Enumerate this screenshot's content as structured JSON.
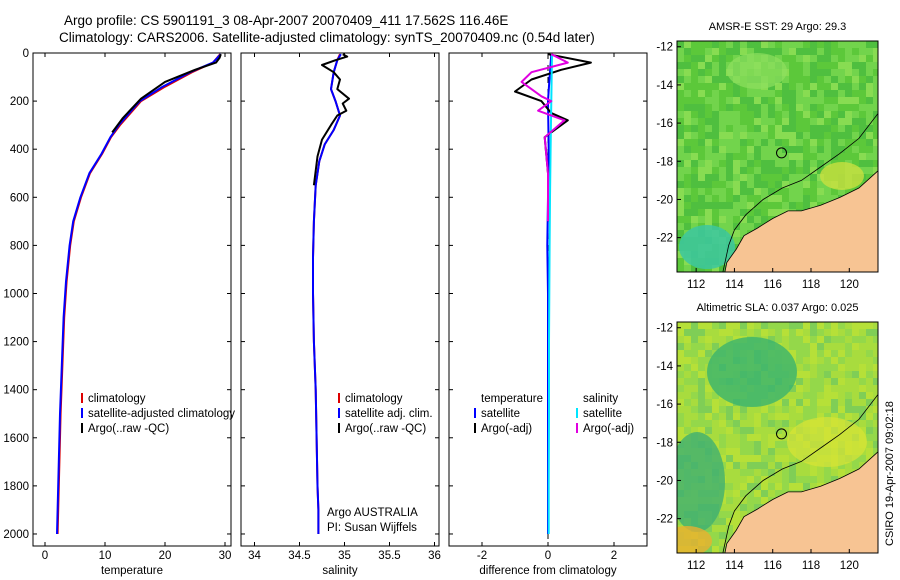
{
  "header": {
    "line1": "Argo profile: CS 5901191_3 08-Apr-2007 20070409_411 17.562S 116.46E",
    "line2": "Climatology: CARS2006. Satellite-adjusted climatology: synTS_20070409.nc (0.54d later)"
  },
  "signature": "CSIRO 19-Apr-2007 09:02:18",
  "colors": {
    "red": "#dd0000",
    "blue": "#0000ff",
    "black": "#000000",
    "cyan": "#00e5ff",
    "magenta": "#e000e0",
    "land": "#f7c493",
    "green": "#6ed24a"
  },
  "chart_data": [
    {
      "id": "temperature",
      "type": "line",
      "xlabel": "temperature",
      "xlim": [
        -2,
        31
      ],
      "ylim": [
        2050,
        0
      ],
      "xticks": [
        "0",
        "10",
        "20",
        "30"
      ],
      "xtick_values": [
        0,
        10,
        20,
        30
      ],
      "yticks": [
        "0",
        "200",
        "400",
        "600",
        "800",
        "1000",
        "1200",
        "1400",
        "1600",
        "1800",
        "2000"
      ],
      "ytick_values": [
        0,
        200,
        400,
        600,
        800,
        1000,
        1200,
        1400,
        1600,
        1800,
        2000
      ],
      "legend": [
        "climatology",
        "satellite-adjusted climatology",
        "Argo(..raw -QC)"
      ],
      "series": [
        {
          "name": "climatology",
          "color": "red",
          "x": [
            29.2,
            28.0,
            24.5,
            20.0,
            16.0,
            12.5,
            11.0,
            9.5,
            7.5,
            6.0,
            4.8,
            4.2,
            3.6,
            3.2,
            2.9,
            2.6,
            2.4,
            2.2,
            2.1
          ],
          "y": [
            5,
            40,
            80,
            140,
            200,
            300,
            350,
            420,
            500,
            600,
            700,
            800,
            950,
            1100,
            1300,
            1500,
            1700,
            1900,
            2000
          ]
        },
        {
          "name": "satellite-adjusted climatology",
          "color": "blue",
          "x": [
            29.3,
            28.0,
            24.2,
            19.6,
            15.8,
            12.3,
            10.9,
            9.4,
            7.4,
            5.9,
            4.7,
            4.1,
            3.5,
            3.1,
            2.8,
            2.5,
            2.3,
            2.1,
            2.0
          ],
          "y": [
            5,
            40,
            80,
            140,
            200,
            300,
            350,
            420,
            500,
            600,
            700,
            800,
            950,
            1100,
            1300,
            1500,
            1700,
            1900,
            2000
          ]
        },
        {
          "name": "Argo(..raw -QC)",
          "color": "black",
          "x": [
            29.3,
            29.1,
            28.5,
            25.0,
            20.0,
            16.0,
            13.0,
            11.2
          ],
          "y": [
            5,
            20,
            40,
            70,
            120,
            190,
            270,
            330
          ]
        }
      ]
    },
    {
      "id": "salinity",
      "type": "line",
      "xlabel": "salinity",
      "xlim": [
        33.85,
        36.05
      ],
      "ylim": [
        2050,
        0
      ],
      "xticks": [
        "34",
        "34.5",
        "35",
        "35.5",
        "36"
      ],
      "xtick_values": [
        34,
        34.5,
        35,
        35.5,
        36
      ],
      "legend": [
        "climatology",
        "satellite adj. clim.",
        "Argo(..raw -QC)"
      ],
      "note1": "Argo AUSTRALIA",
      "note2": "PI: Susan Wijffels",
      "series": [
        {
          "name": "climatology",
          "color": "red",
          "x": [
            34.95,
            34.92,
            34.88,
            34.85,
            34.9,
            34.95,
            34.88,
            34.78,
            34.72,
            34.68,
            34.66,
            34.65,
            34.65,
            34.66,
            34.68,
            34.69,
            34.7,
            34.71,
            34.71
          ],
          "y": [
            5,
            30,
            80,
            150,
            200,
            260,
            320,
            380,
            450,
            550,
            700,
            850,
            1000,
            1200,
            1400,
            1600,
            1800,
            1900,
            2000
          ]
        },
        {
          "name": "satellite adj. clim.",
          "color": "blue",
          "x": [
            34.96,
            34.92,
            34.88,
            34.85,
            34.9,
            34.95,
            34.88,
            34.78,
            34.72,
            34.68,
            34.66,
            34.65,
            34.65,
            34.66,
            34.68,
            34.69,
            34.7,
            34.71,
            34.71
          ],
          "y": [
            5,
            30,
            80,
            150,
            200,
            260,
            320,
            380,
            450,
            550,
            700,
            850,
            1000,
            1200,
            1400,
            1600,
            1800,
            1900,
            2000
          ]
        },
        {
          "name": "Argo(..raw -QC)",
          "color": "black",
          "x": [
            34.98,
            35.03,
            34.9,
            34.75,
            34.88,
            34.95,
            34.92,
            35.05,
            34.98,
            35.02,
            34.92,
            34.85,
            34.75,
            34.7,
            34.66
          ],
          "y": [
            5,
            15,
            30,
            50,
            80,
            110,
            150,
            190,
            210,
            240,
            260,
            300,
            360,
            430,
            550
          ]
        }
      ]
    },
    {
      "id": "difference",
      "type": "line",
      "xlabel": "difference from climatology",
      "xlim": [
        -3,
        3
      ],
      "ylim": [
        2050,
        0
      ],
      "xticks": [
        "-2",
        "0",
        "2"
      ],
      "xtick_values": [
        -2,
        0,
        2
      ],
      "legend_left_title": "temperature",
      "legend_right_title": "salinity",
      "legend_left": [
        "satellite",
        "Argo(-adj)"
      ],
      "legend_right": [
        "satellite",
        "Argo(-adj)"
      ],
      "series": [
        {
          "name": "temperature satellite",
          "color": "blue",
          "x": [
            0.1,
            0.05,
            0.0,
            0.02,
            0.0,
            -0.02,
            0.0,
            0.0,
            0.0,
            0.0,
            0.0
          ],
          "y": [
            5,
            100,
            200,
            400,
            600,
            800,
            1000,
            1200,
            1500,
            1800,
            2000
          ]
        },
        {
          "name": "temperature Argo(-adj)",
          "color": "black",
          "x": [
            0.0,
            1.3,
            0.4,
            -0.5,
            -1.0,
            -0.2,
            0.1,
            0.6,
            -0.1,
            0.0,
            0.0
          ],
          "y": [
            5,
            40,
            70,
            110,
            160,
            200,
            250,
            280,
            350,
            500,
            700
          ]
        },
        {
          "name": "salinity satellite",
          "color": "cyan",
          "x": [
            0.12,
            0.1,
            0.08,
            0.06,
            0.05,
            0.04,
            0.03,
            0.03,
            0.02,
            0.02
          ],
          "y": [
            5,
            200,
            400,
            600,
            800,
            1000,
            1200,
            1500,
            1800,
            2000
          ]
        },
        {
          "name": "salinity Argo(-adj)",
          "color": "magenta",
          "x": [
            0.1,
            0.6,
            -0.5,
            -0.8,
            -0.2,
            0.1,
            -0.3,
            0.5,
            -0.1,
            0.0,
            0.0
          ],
          "y": [
            5,
            40,
            80,
            120,
            180,
            200,
            240,
            280,
            350,
            500,
            700
          ]
        }
      ]
    },
    {
      "id": "sst-map",
      "type": "heatmap",
      "title": "AMSR-E SST: 29 Argo: 29.3",
      "xlim": [
        111,
        121.5
      ],
      "ylim": [
        -23.8,
        -11.7
      ],
      "xticks": [
        "112",
        "114",
        "116",
        "118",
        "120"
      ],
      "xtick_values": [
        112,
        114,
        116,
        118,
        120
      ],
      "yticks": [
        "-12",
        "-14",
        "-16",
        "-18",
        "-20",
        "-22"
      ],
      "ytick_values": [
        -12,
        -14,
        -16,
        -18,
        -20,
        -22
      ],
      "marker": {
        "lon": 116.46,
        "lat": -17.562
      }
    },
    {
      "id": "sla-map",
      "type": "heatmap",
      "title": "Altimetric SLA: 0.037 Argo: 0.025",
      "xlim": [
        111,
        121.5
      ],
      "ylim": [
        -23.8,
        -11.7
      ],
      "xticks": [
        "112",
        "114",
        "116",
        "118",
        "120"
      ],
      "xtick_values": [
        112,
        114,
        116,
        118,
        120
      ],
      "yticks": [
        "-12",
        "-14",
        "-16",
        "-18",
        "-20",
        "-22"
      ],
      "ytick_values": [
        -12,
        -14,
        -16,
        -18,
        -20,
        -22
      ],
      "marker": {
        "lon": 116.46,
        "lat": -17.562
      }
    }
  ]
}
